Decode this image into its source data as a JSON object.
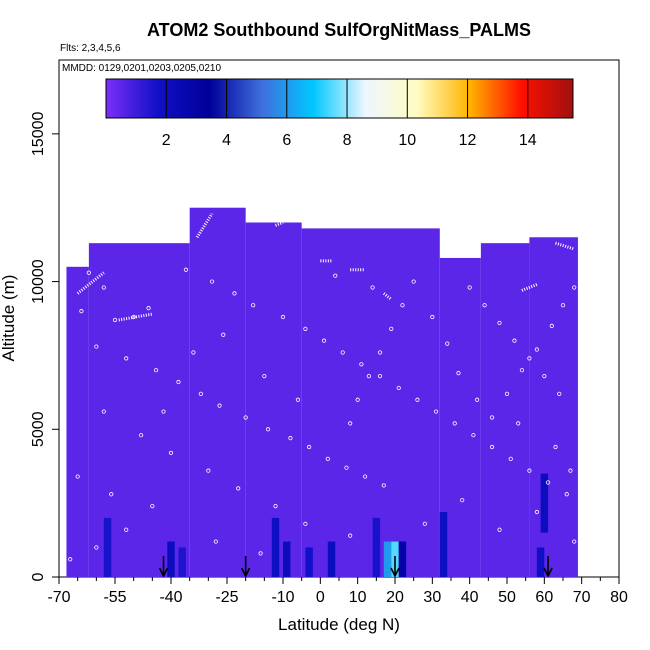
{
  "chart_data": {
    "type": "heatmap",
    "title": "ATOM2 Southbound SulfOrgNitMass_PALMS",
    "flights_text": "Flts: 2,3,4,5,6",
    "dates_text": "MMDD: 0129,0201,0203,0205,0210",
    "xlabel": "Latitude (deg N)",
    "ylabel": "Altitude (m)",
    "xlim": [
      -70,
      80
    ],
    "ylim": [
      0,
      17500
    ],
    "x_ticks": [
      -70,
      -55,
      -40,
      -25,
      -10,
      0,
      10,
      20,
      30,
      40,
      50,
      60,
      70,
      80
    ],
    "x_minor_ticks": [
      -65,
      -60,
      -50,
      -45,
      -35,
      -30,
      -20,
      -15,
      -5,
      5,
      15,
      25,
      35,
      45,
      55,
      65,
      75
    ],
    "y_ticks": [
      0,
      5000,
      10000,
      15000
    ],
    "colorbar": {
      "range": [
        0,
        15.5
      ],
      "ticks": [
        2,
        4,
        6,
        8,
        10,
        12,
        14
      ],
      "colors": [
        "#7b2ff7",
        "#1010c8",
        "#000099",
        "#3f6fdd",
        "#00c8ff",
        "#eef6ff",
        "#fffcc0",
        "#ffb400",
        "#ff1000",
        "#a01010"
      ]
    },
    "regions": [
      {
        "lat_from": -68,
        "lat_to": -62,
        "alt_from": 0,
        "alt_to": 10500
      },
      {
        "lat_from": -62,
        "lat_to": -35,
        "alt_from": 0,
        "alt_to": 11300
      },
      {
        "lat_from": -35,
        "lat_to": -20,
        "alt_from": 0,
        "alt_to": 12500
      },
      {
        "lat_from": -20,
        "lat_to": -5,
        "alt_from": 0,
        "alt_to": 12000
      },
      {
        "lat_from": -5,
        "lat_to": 32,
        "alt_from": 0,
        "alt_to": 11800
      },
      {
        "lat_from": 32,
        "lat_to": 43,
        "alt_from": 0,
        "alt_to": 10800
      },
      {
        "lat_from": 43,
        "lat_to": 56,
        "alt_from": 0,
        "alt_to": 11300
      },
      {
        "lat_from": 56,
        "lat_to": 69,
        "alt_from": 0,
        "alt_to": 11500
      }
    ],
    "enhanced_cells": [
      {
        "lat": -57,
        "alt_from": 0,
        "alt_to": 2000,
        "value": 1.6
      },
      {
        "lat": -40,
        "alt_from": 0,
        "alt_to": 1200,
        "value": 2.0
      },
      {
        "lat": -37,
        "alt_from": 0,
        "alt_to": 1000,
        "value": 1.5
      },
      {
        "lat": -12,
        "alt_from": 0,
        "alt_to": 2000,
        "value": 1.8
      },
      {
        "lat": -9,
        "alt_from": 0,
        "alt_to": 1200,
        "value": 2.2
      },
      {
        "lat": -3,
        "alt_from": 0,
        "alt_to": 1000,
        "value": 1.7
      },
      {
        "lat": 3,
        "alt_from": 0,
        "alt_to": 1200,
        "value": 2.0
      },
      {
        "lat": 15,
        "alt_from": 0,
        "alt_to": 2000,
        "value": 1.6
      },
      {
        "lat": 18,
        "alt_from": 0,
        "alt_to": 1200,
        "value": 6.0
      },
      {
        "lat": 20,
        "alt_from": 0,
        "alt_to": 1200,
        "value": 7.5
      },
      {
        "lat": 22,
        "alt_from": 0,
        "alt_to": 1200,
        "value": 3.0
      },
      {
        "lat": 33,
        "alt_from": 0,
        "alt_to": 2200,
        "value": 1.9
      },
      {
        "lat": 60,
        "alt_from": 1500,
        "alt_to": 3500,
        "value": 2.0
      },
      {
        "lat": 59,
        "alt_from": 0,
        "alt_to": 1000,
        "value": 1.8
      }
    ],
    "sample_points": [
      [
        -66,
        10600
      ],
      [
        -62,
        10300
      ],
      [
        -58,
        9800
      ],
      [
        -64,
        9000
      ],
      [
        -55,
        8700
      ],
      [
        -50,
        8800
      ],
      [
        -46,
        9100
      ],
      [
        -60,
        7800
      ],
      [
        -52,
        7400
      ],
      [
        -44,
        7000
      ],
      [
        -38,
        6600
      ],
      [
        -32,
        6200
      ],
      [
        -27,
        5800
      ],
      [
        -20,
        5400
      ],
      [
        -14,
        5000
      ],
      [
        -8,
        4700
      ],
      [
        -3,
        4400
      ],
      [
        2,
        4000
      ],
      [
        7,
        3700
      ],
      [
        12,
        3400
      ],
      [
        17,
        3100
      ],
      [
        -58,
        5600
      ],
      [
        -48,
        4800
      ],
      [
        -40,
        4200
      ],
      [
        -30,
        3600
      ],
      [
        -22,
        3000
      ],
      [
        -12,
        2400
      ],
      [
        -4,
        1800
      ],
      [
        -36,
        10400
      ],
      [
        -29,
        10000
      ],
      [
        -23,
        9600
      ],
      [
        -18,
        9200
      ],
      [
        -10,
        8800
      ],
      [
        -4,
        8400
      ],
      [
        1,
        8000
      ],
      [
        6,
        7600
      ],
      [
        11,
        7200
      ],
      [
        16,
        6800
      ],
      [
        21,
        6400
      ],
      [
        26,
        6000
      ],
      [
        31,
        5600
      ],
      [
        36,
        5200
      ],
      [
        41,
        4800
      ],
      [
        46,
        4400
      ],
      [
        51,
        4000
      ],
      [
        56,
        3600
      ],
      [
        61,
        3200
      ],
      [
        66,
        2800
      ],
      [
        40,
        9800
      ],
      [
        44,
        9200
      ],
      [
        48,
        8600
      ],
      [
        52,
        8000
      ],
      [
        56,
        7400
      ],
      [
        60,
        6800
      ],
      [
        64,
        6200
      ],
      [
        68,
        9800
      ],
      [
        65,
        9200
      ],
      [
        62,
        8500
      ],
      [
        58,
        7700
      ],
      [
        54,
        7000
      ],
      [
        50,
        6200
      ],
      [
        46,
        5400
      ],
      [
        25,
        10000
      ],
      [
        22,
        9200
      ],
      [
        19,
        8400
      ],
      [
        16,
        7600
      ],
      [
        13,
        6800
      ],
      [
        10,
        6000
      ],
      [
        8,
        5200
      ],
      [
        -45,
        2400
      ],
      [
        -52,
        1600
      ],
      [
        -60,
        1000
      ],
      [
        -67,
        600
      ],
      [
        -28,
        1200
      ],
      [
        -16,
        800
      ],
      [
        8,
        1400
      ],
      [
        28,
        1800
      ],
      [
        38,
        2600
      ],
      [
        48,
        1600
      ],
      [
        58,
        2200
      ],
      [
        68,
        1200
      ],
      [
        -34,
        7600
      ],
      [
        -26,
        8200
      ],
      [
        -15,
        6800
      ],
      [
        -6,
        6000
      ],
      [
        4,
        10200
      ],
      [
        14,
        9800
      ],
      [
        30,
        8800
      ],
      [
        34,
        7900
      ],
      [
        37,
        6900
      ],
      [
        42,
        6000
      ],
      [
        53,
        5200
      ],
      [
        63,
        4400
      ],
      [
        67,
        3600
      ],
      [
        -65,
        3400
      ],
      [
        -56,
        2800
      ],
      [
        -42,
        5600
      ]
    ],
    "flight_tracks": [
      {
        "lat_from": -65,
        "lat_to": -58,
        "alt_from": 9600,
        "alt_to": 10300
      },
      {
        "lat_from": -54,
        "lat_to": -45,
        "alt_from": 8700,
        "alt_to": 8900
      },
      {
        "lat_from": -33,
        "lat_to": -29,
        "alt_from": 11500,
        "alt_to": 12300
      },
      {
        "lat_from": -12,
        "lat_to": -10,
        "alt_from": 11900,
        "alt_to": 12000
      },
      {
        "lat_from": 0,
        "lat_to": 3,
        "alt_from": 10700,
        "alt_to": 10700
      },
      {
        "lat_from": 8,
        "lat_to": 12,
        "alt_from": 10400,
        "alt_to": 10400
      },
      {
        "lat_from": 17,
        "lat_to": 19,
        "alt_from": 9600,
        "alt_to": 9400
      },
      {
        "lat_from": 54,
        "lat_to": 58,
        "alt_from": 9700,
        "alt_to": 9900
      },
      {
        "lat_from": 63,
        "lat_to": 68,
        "alt_from": 11300,
        "alt_to": 11100
      }
    ],
    "arrow_latitudes": [
      -42,
      -20,
      20,
      61
    ]
  }
}
